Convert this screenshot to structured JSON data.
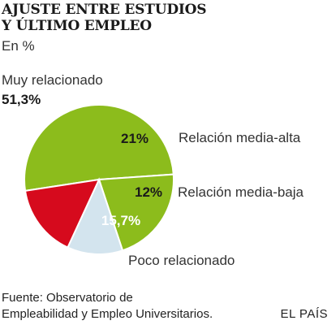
{
  "chart_data": {
    "type": "pie",
    "title_line1": "AJUSTE ENTRE ESTUDIOS",
    "title_line2": "Y ÚLTIMO EMPLEO",
    "subtitle": "En %",
    "slices": [
      {
        "name": "Muy relacionado",
        "value": 51.3,
        "label": "51,3%",
        "color": "#8cbc1c"
      },
      {
        "name": "Relación media-alta",
        "value": 21,
        "label": "21%",
        "color": "#8cbc1c"
      },
      {
        "name": "Relación media-baja",
        "value": 12,
        "label": "12%",
        "color": "#d3e4ee"
      },
      {
        "name": "Poco relacionado",
        "value": 15.7,
        "label": "15,7%",
        "color": "#d60a1d"
      }
    ]
  },
  "footer": {
    "source_line1": "Fuente: Observatorio de",
    "source_line2": "Empleabilidad y Empleo Universitarios.",
    "brand": "EL PAÍS"
  }
}
